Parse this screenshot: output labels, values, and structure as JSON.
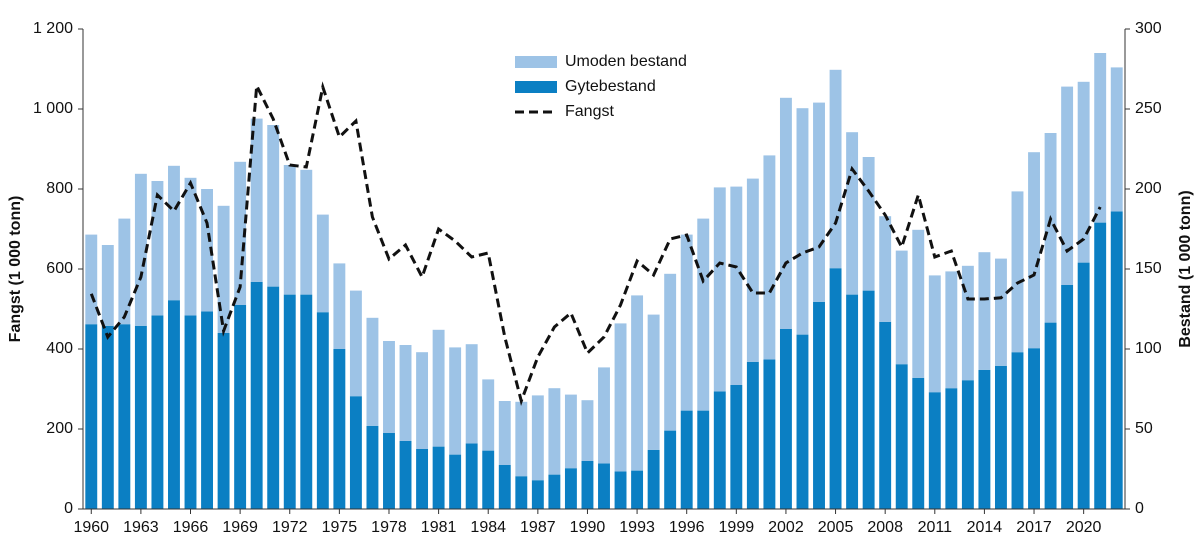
{
  "chart_data": {
    "type": "bar+line",
    "y_label": "Fangst (1 000 tonn)",
    "y2_label": "Bestand (1 000 tonn)",
    "x": [
      1960,
      1961,
      1962,
      1963,
      1964,
      1965,
      1966,
      1967,
      1968,
      1969,
      1970,
      1971,
      1972,
      1973,
      1974,
      1975,
      1976,
      1977,
      1978,
      1979,
      1980,
      1981,
      1982,
      1983,
      1984,
      1985,
      1986,
      1987,
      1988,
      1989,
      1990,
      1991,
      1992,
      1993,
      1994,
      1995,
      1996,
      1997,
      1998,
      1999,
      2000,
      2001,
      2002,
      2003,
      2004,
      2005,
      2006,
      2007,
      2008,
      2009,
      2010,
      2011,
      2012,
      2013,
      2014,
      2015,
      2016,
      2017,
      2018,
      2019,
      2020,
      2021,
      2022
    ],
    "xlim": [
      1959.5,
      2022.5
    ],
    "xticks": [
      1960,
      1963,
      1966,
      1969,
      1972,
      1975,
      1978,
      1981,
      1984,
      1987,
      1990,
      1993,
      1996,
      1999,
      2002,
      2005,
      2008,
      2011,
      2014,
      2017,
      2020
    ],
    "ylim": [
      0,
      1200
    ],
    "yticks": [
      0,
      200,
      400,
      600,
      800,
      {
        "value": 1000,
        "label": "1 000"
      },
      {
        "value": 1200,
        "label": "1 200"
      }
    ],
    "y2lim": [
      0,
      300
    ],
    "y2ticks": [
      0,
      50,
      100,
      150,
      200,
      250,
      300
    ],
    "legend": "top-center",
    "series": [
      {
        "name": "Umoden bestand",
        "type": "bar",
        "stack": "bestand",
        "axis": "y2",
        "color": "#9dc3e6",
        "values": [
          56,
          50.5,
          66,
          95,
          84,
          84,
          86,
          76.5,
          79.5,
          89.5,
          102,
          101,
          81,
          78,
          61,
          53.5,
          66,
          67.5,
          57.5,
          60,
          60.5,
          73,
          67,
          62,
          44.5,
          40,
          46.5,
          53,
          54,
          46,
          38,
          60,
          92.5,
          109.5,
          84.5,
          98,
          110,
          120,
          127.5,
          124,
          114.5,
          127.5,
          144.5,
          141.5,
          124.5,
          124,
          101.5,
          83.5,
          66,
          71,
          92.5,
          73,
          73,
          71.5,
          73.5,
          67,
          100.5,
          122.5,
          118.5,
          124,
          113,
          106,
          90
        ]
      },
      {
        "name": "Gytebestand",
        "type": "bar",
        "stack": "bestand",
        "axis": "y2",
        "color": "#0b7fc3",
        "values": [
          115.5,
          114.5,
          115.5,
          114.5,
          121,
          130.5,
          121,
          123.5,
          110,
          127.5,
          142,
          139,
          134,
          134,
          123,
          100,
          70.5,
          52,
          47.5,
          42.5,
          37.5,
          39,
          34,
          41,
          36.5,
          27.5,
          20.5,
          18,
          21.5,
          25.5,
          30,
          28.5,
          23.5,
          24,
          37,
          49,
          61.5,
          61.5,
          73.5,
          77.5,
          92,
          93.5,
          112.5,
          109,
          129.5,
          150.5,
          134,
          136.5,
          117,
          90.5,
          82,
          73,
          75.5,
          80.5,
          87,
          89.5,
          98,
          100.5,
          116.5,
          140,
          154,
          179,
          186
        ]
      },
      {
        "name": "Fangst",
        "type": "line",
        "axis": "y",
        "color": "#111111",
        "dashed": true,
        "values": [
          538,
          430,
          480,
          580,
          785,
          745,
          815,
          715,
          445,
          555,
          1058,
          975,
          860,
          855,
          1055,
          930,
          970,
          730,
          625,
          660,
          580,
          700,
          670,
          630,
          640,
          430,
          270,
          380,
          455,
          490,
          390,
          430,
          510,
          620,
          585,
          675,
          685,
          570,
          615,
          605,
          540,
          540,
          615,
          640,
          655,
          715,
          850,
          795,
          735,
          655,
          785,
          630,
          645,
          525,
          525,
          528,
          565,
          585,
          725,
          645,
          675,
          755,
          null
        ]
      }
    ]
  }
}
